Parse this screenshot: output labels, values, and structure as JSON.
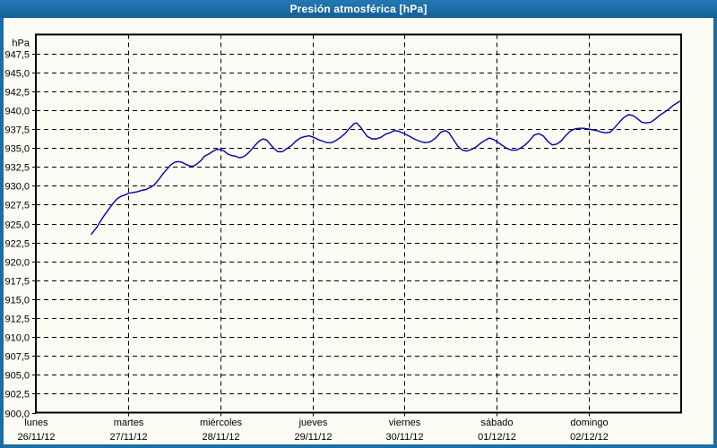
{
  "window": {
    "title": "Presión atmosférica [hPa]"
  },
  "colors": {
    "titlebar_bg": "#1c6da6",
    "frame": "#1c6da6",
    "content_bg": "#fcfcf5",
    "plot_bg": "#fcfcf5",
    "grid": "#000000",
    "border": "#000000",
    "text": "#000000",
    "title_text": "#ffffff",
    "line": "#0000aa"
  },
  "chart_data": {
    "type": "line",
    "title": "Presión atmosférica [hPa]",
    "ylabel": "hPa",
    "unit": "hPa",
    "ylim": [
      900,
      950
    ],
    "ytick_step": 2.5,
    "ytick_labels": [
      "947,5",
      "945,0",
      "942,5",
      "940,0",
      "937,5",
      "935,0",
      "932,5",
      "930,0",
      "927,5",
      "925,0",
      "922,5",
      "920,0",
      "917,5",
      "915,0",
      "912,5",
      "910,0",
      "907,5",
      "905,0",
      "902,5",
      "900,0"
    ],
    "decimal_separator": ",",
    "grid": "dashed",
    "legend": "none",
    "xlim_days": [
      0,
      7
    ],
    "x_days": [
      {
        "weekday": "lunes",
        "date": "26/11/12"
      },
      {
        "weekday": "martes",
        "date": "27/11/12"
      },
      {
        "weekday": "miércoles",
        "date": "28/11/12"
      },
      {
        "weekday": "jueves",
        "date": "29/11/12"
      },
      {
        "weekday": "viernes",
        "date": "30/11/12"
      },
      {
        "weekday": "sábado",
        "date": "01/12/12"
      },
      {
        "weekday": "domingo",
        "date": "02/12/12"
      }
    ],
    "series": [
      {
        "name": "Presión atmosférica",
        "x_unit": "days_from_monday_00h",
        "y_unit": "hPa",
        "points": [
          [
            0.603,
            923.6
          ],
          [
            0.661,
            924.5
          ],
          [
            0.7,
            925.3
          ],
          [
            0.749,
            926.2
          ],
          [
            0.797,
            927.0
          ],
          [
            0.846,
            927.8
          ],
          [
            0.885,
            928.3
          ],
          [
            0.924,
            928.6
          ],
          [
            0.972,
            928.8
          ],
          [
            1.001,
            929.0
          ],
          [
            1.05,
            929.1
          ],
          [
            1.099,
            929.2
          ],
          [
            1.147,
            929.4
          ],
          [
            1.196,
            929.5
          ],
          [
            1.244,
            929.8
          ],
          [
            1.283,
            930.1
          ],
          [
            1.332,
            930.8
          ],
          [
            1.381,
            931.6
          ],
          [
            1.429,
            932.3
          ],
          [
            1.468,
            932.8
          ],
          [
            1.507,
            933.1
          ],
          [
            1.546,
            933.2
          ],
          [
            1.585,
            933.1
          ],
          [
            1.633,
            932.8
          ],
          [
            1.672,
            932.6
          ],
          [
            1.711,
            932.6
          ],
          [
            1.75,
            932.9
          ],
          [
            1.789,
            933.3
          ],
          [
            1.828,
            933.9
          ],
          [
            1.876,
            934.2
          ],
          [
            1.925,
            934.6
          ],
          [
            1.964,
            934.8
          ],
          [
            2.003,
            934.8
          ],
          [
            2.042,
            934.6
          ],
          [
            2.081,
            934.2
          ],
          [
            2.12,
            934.0
          ],
          [
            2.168,
            933.9
          ],
          [
            2.207,
            933.7
          ],
          [
            2.246,
            933.8
          ],
          [
            2.285,
            934.1
          ],
          [
            2.333,
            934.7
          ],
          [
            2.382,
            935.4
          ],
          [
            2.431,
            936.0
          ],
          [
            2.469,
            936.2
          ],
          [
            2.508,
            936.0
          ],
          [
            2.547,
            935.4
          ],
          [
            2.586,
            934.9
          ],
          [
            2.625,
            934.5
          ],
          [
            2.674,
            934.5
          ],
          [
            2.722,
            934.9
          ],
          [
            2.771,
            935.3
          ],
          [
            2.82,
            935.9
          ],
          [
            2.868,
            936.3
          ],
          [
            2.917,
            936.5
          ],
          [
            2.965,
            936.6
          ],
          [
            3.014,
            936.4
          ],
          [
            3.063,
            936.1
          ],
          [
            3.111,
            935.9
          ],
          [
            3.16,
            935.7
          ],
          [
            3.208,
            935.7
          ],
          [
            3.257,
            936.0
          ],
          [
            3.306,
            936.4
          ],
          [
            3.354,
            936.9
          ],
          [
            3.403,
            937.6
          ],
          [
            3.451,
            938.2
          ],
          [
            3.48,
            938.3
          ],
          [
            3.519,
            937.8
          ],
          [
            3.558,
            937.1
          ],
          [
            3.597,
            936.5
          ],
          [
            3.646,
            936.2
          ],
          [
            3.694,
            936.2
          ],
          [
            3.743,
            936.4
          ],
          [
            3.791,
            936.8
          ],
          [
            3.84,
            937.0
          ],
          [
            3.889,
            937.3
          ],
          [
            3.937,
            937.2
          ],
          [
            3.996,
            936.9
          ],
          [
            4.044,
            936.6
          ],
          [
            4.103,
            936.2
          ],
          [
            4.161,
            935.9
          ],
          [
            4.219,
            935.7
          ],
          [
            4.278,
            935.8
          ],
          [
            4.336,
            936.3
          ],
          [
            4.394,
            937.1
          ],
          [
            4.443,
            937.3
          ],
          [
            4.482,
            937.0
          ],
          [
            4.53,
            936.1
          ],
          [
            4.579,
            935.2
          ],
          [
            4.628,
            934.7
          ],
          [
            4.676,
            934.6
          ],
          [
            4.725,
            934.8
          ],
          [
            4.773,
            935.1
          ],
          [
            4.822,
            935.6
          ],
          [
            4.871,
            936.0
          ],
          [
            4.919,
            936.3
          ],
          [
            4.968,
            936.1
          ],
          [
            5.017,
            935.7
          ],
          [
            5.065,
            935.3
          ],
          [
            5.114,
            934.9
          ],
          [
            5.162,
            934.7
          ],
          [
            5.211,
            934.7
          ],
          [
            5.26,
            935.0
          ],
          [
            5.308,
            935.4
          ],
          [
            5.357,
            936.0
          ],
          [
            5.405,
            936.7
          ],
          [
            5.454,
            936.9
          ],
          [
            5.503,
            936.6
          ],
          [
            5.551,
            935.9
          ],
          [
            5.6,
            935.4
          ],
          [
            5.648,
            935.5
          ],
          [
            5.697,
            935.9
          ],
          [
            5.746,
            936.6
          ],
          [
            5.794,
            937.2
          ],
          [
            5.843,
            937.5
          ],
          [
            5.891,
            937.6
          ],
          [
            5.94,
            937.6
          ],
          [
            5.989,
            937.5
          ],
          [
            6.037,
            937.4
          ],
          [
            6.086,
            937.3
          ],
          [
            6.134,
            937.1
          ],
          [
            6.183,
            937.0
          ],
          [
            6.232,
            937.1
          ],
          [
            6.28,
            937.7
          ],
          [
            6.329,
            938.4
          ],
          [
            6.377,
            939.0
          ],
          [
            6.426,
            939.4
          ],
          [
            6.475,
            939.3
          ],
          [
            6.523,
            938.9
          ],
          [
            6.572,
            938.4
          ],
          [
            6.62,
            938.3
          ],
          [
            6.669,
            938.4
          ],
          [
            6.718,
            938.8
          ],
          [
            6.766,
            939.3
          ],
          [
            6.815,
            939.7
          ],
          [
            6.863,
            940.1
          ],
          [
            6.912,
            940.6
          ],
          [
            6.961,
            941.0
          ],
          [
            6.99,
            941.2
          ]
        ]
      }
    ]
  }
}
